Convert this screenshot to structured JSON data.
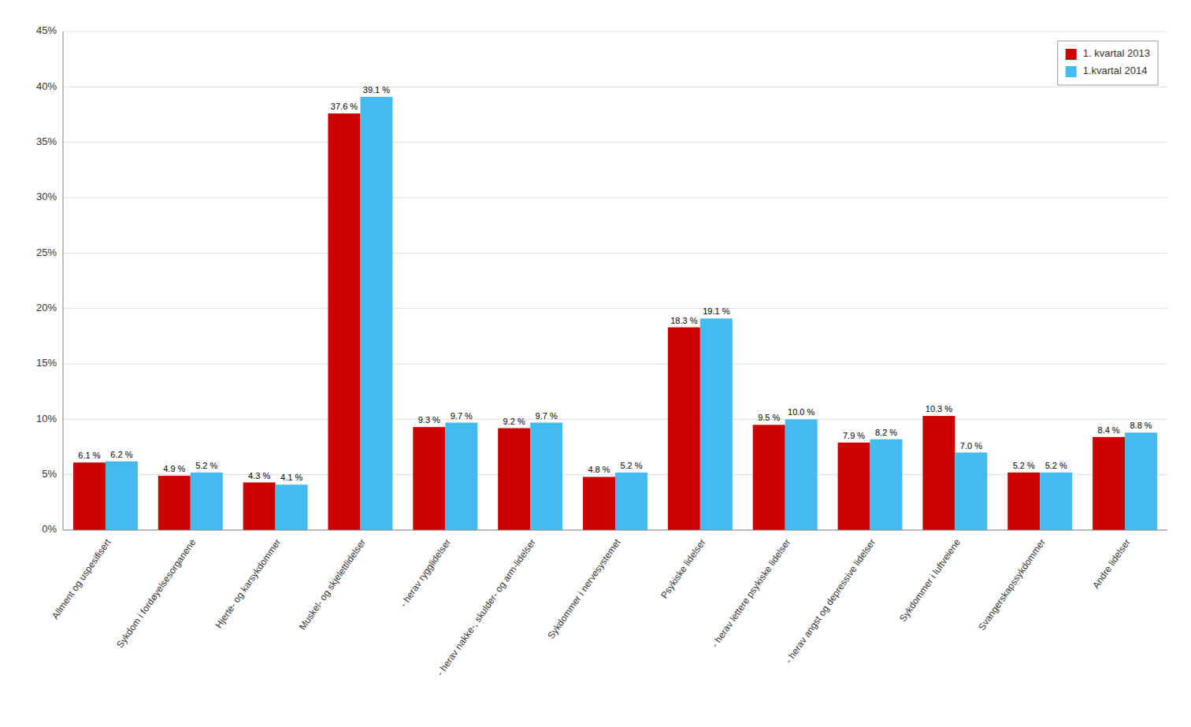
{
  "chart_data": {
    "type": "bar",
    "categories": [
      "Allment og uspesifisert",
      "Sykdom i fordøyelsesorganene",
      "Hjerte- og karsykdommer",
      "Muskel- og skjelettlidelser",
      "- herav rygglidelser",
      "- herav nakke-, skulder- og arm-lidelser",
      "Sykdommer i nervesystemet",
      "Psykiske lidelser",
      "- herav lettere psykiske lidelser",
      "- herav angst og depressive lidelser",
      "Sykdommer i luftveiene",
      "Svangerskapssykdommer",
      "Andre lidelser"
    ],
    "series": [
      {
        "name": "1. kvartal 2013",
        "color": "#cc0000",
        "values": [
          6.1,
          4.9,
          4.3,
          37.6,
          9.3,
          9.2,
          4.8,
          18.3,
          9.5,
          7.9,
          10.3,
          5.2,
          8.4
        ],
        "value_labels": [
          "6.1 %",
          "4.9 %",
          "4.3 %",
          "37.6 %",
          "9.3 %",
          "9.2 %",
          "4.8 %",
          "18.3 %",
          "9.5 %",
          "7.9 %",
          "10.3 %",
          "5.2 %",
          "8.4 %"
        ]
      },
      {
        "name": "1.kvartal 2014",
        "color": "#44bbee",
        "values": [
          6.2,
          5.2,
          4.1,
          39.1,
          9.7,
          9.7,
          5.2,
          19.1,
          10.0,
          8.2,
          7.0,
          5.2,
          8.8
        ],
        "value_labels": [
          "6.2 %",
          "5.2 %",
          "4.1 %",
          "39.1 %",
          "9.7 %",
          "9.7 %",
          "5.2 %",
          "19.1 %",
          "10.0 %",
          "8.2 %",
          "7.0 %",
          "5.2 %",
          "8.8 %"
        ]
      }
    ],
    "ylim": [
      0,
      45
    ],
    "yticks": [
      {
        "value": 0,
        "label": "0%"
      },
      {
        "value": 5,
        "label": "5%"
      },
      {
        "value": 10,
        "label": "10%"
      },
      {
        "value": 15,
        "label": "15%"
      },
      {
        "value": 20,
        "label": "20%"
      },
      {
        "value": 25,
        "label": "25%"
      },
      {
        "value": 30,
        "label": "30%"
      },
      {
        "value": 35,
        "label": "35%"
      },
      {
        "value": 40,
        "label": "40%"
      },
      {
        "value": 45,
        "label": "45%"
      }
    ],
    "grid": true,
    "legend": "upper right",
    "data_labels": true
  }
}
